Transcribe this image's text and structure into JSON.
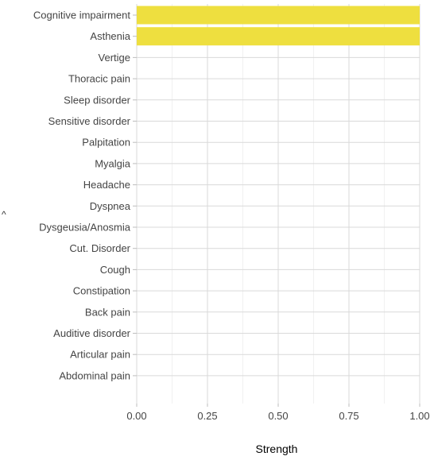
{
  "chart_data": {
    "type": "bar",
    "orientation": "horizontal",
    "categories": [
      "Cognitive impairment",
      "Asthenia",
      "Vertige",
      "Thoracic pain",
      "Sleep disorder",
      "Sensitive disorder",
      "Palpitation",
      "Myalgia",
      "Headache",
      "Dyspnea",
      "Dysgeusia/Anosmia",
      "Cut. Disorder",
      "Cough",
      "Constipation",
      "Back pain",
      "Auditive disorder",
      "Articular pain",
      "Abdominal pain"
    ],
    "values": [
      1.0,
      1.0,
      0,
      0,
      0,
      0,
      0,
      0,
      0,
      0,
      0,
      0,
      0,
      0,
      0,
      0,
      0,
      0
    ],
    "xlabel": "Strength",
    "ylabel": "",
    "xlim": [
      0,
      1
    ],
    "xticks": [
      "0.00",
      "0.25",
      "0.50",
      "0.75",
      "1.00"
    ],
    "grid": true,
    "bar_color": "#eedf3f",
    "legend": "none"
  },
  "stray_mark": "^"
}
